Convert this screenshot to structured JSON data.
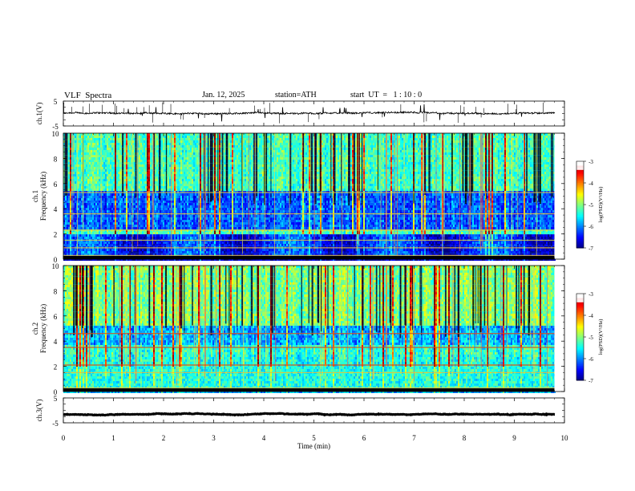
{
  "header": {
    "title": "VLF  Spectra",
    "date": "Jan. 12, 2025",
    "station": "station=ATH",
    "start_ut": "start  UT  =   1 : 10 : 0"
  },
  "chart_data": [
    {
      "type": "line",
      "panel": "ch1-waveform",
      "ylabel": "ch.1(V)",
      "yticks": [
        "5",
        "-5"
      ],
      "ylim": [
        -5,
        5
      ],
      "xlim": [
        0,
        10
      ],
      "x_end": 9.8,
      "baseline_v": 0.1,
      "spread_v": 0.6
    },
    {
      "type": "heatmap",
      "panel": "ch1-spectrogram",
      "ylabel": "Frequency  (kHz)",
      "channel_label": "ch.1",
      "yticks": [
        "0",
        "2",
        "4",
        "6",
        "8",
        "10"
      ],
      "ylim": [
        0,
        10
      ],
      "xlim": [
        0,
        10
      ],
      "x_end": 9.8,
      "colorbar": {
        "label": "log(PSD)(V²/Hz)",
        "ticks": [
          "-3",
          "-4",
          "-5",
          "-6",
          "-7"
        ],
        "range": [
          -7,
          -3
        ]
      },
      "bands_khz": [
        0.3,
        0.9,
        1.5,
        2.3,
        3.6,
        5.3
      ]
    },
    {
      "type": "heatmap",
      "panel": "ch2-spectrogram",
      "ylabel": "Frequency  (kHz)",
      "channel_label": "ch.2",
      "yticks": [
        "0",
        "2",
        "4",
        "6",
        "8",
        "10"
      ],
      "ylim": [
        0,
        10
      ],
      "xlim": [
        0,
        10
      ],
      "x_end": 9.8,
      "colorbar": {
        "label": "log(PSD)(V²/Hz)",
        "ticks": [
          "-3",
          "-4",
          "-5",
          "-6",
          "-7"
        ],
        "range": [
          -7,
          -3
        ]
      },
      "bands_khz": [
        0.3,
        1.5,
        2.1,
        3.5,
        4.6
      ]
    },
    {
      "type": "line",
      "panel": "ch3-waveform",
      "ylabel": "ch.3(V)",
      "yticks": [
        "5",
        "-5"
      ],
      "ylim": [
        -5,
        5
      ],
      "xlim": [
        0,
        10
      ],
      "x_end": 9.8,
      "baseline_v": -1.6,
      "spread_v": 0.15,
      "xlabel": "Time  (min)",
      "xticks": [
        "0",
        "1",
        "2",
        "3",
        "4",
        "5",
        "6",
        "7",
        "8",
        "9",
        "10"
      ]
    }
  ]
}
